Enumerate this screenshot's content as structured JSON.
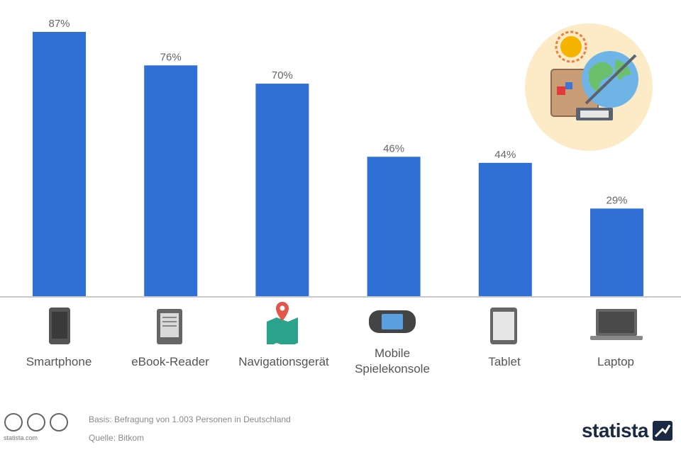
{
  "chart_data": {
    "type": "bar",
    "categories": [
      "Smartphone",
      "eBook-Reader",
      "Navigationsgerät",
      "Mobile\nSpielekonsole",
      "Tablet",
      "Laptop"
    ],
    "values": [
      87,
      76,
      70,
      46,
      44,
      29
    ],
    "value_labels": [
      "87%",
      "76%",
      "70%",
      "46%",
      "44%",
      "29%"
    ],
    "unit": "%",
    "ylim": [
      0,
      90
    ],
    "grid": false,
    "legend": "none",
    "bar_color": "#2f6fd6",
    "icons": [
      "smartphone-icon",
      "ebook-reader-icon",
      "navigation-pin-icon",
      "game-console-icon",
      "tablet-icon",
      "laptop-icon"
    ]
  },
  "footer": {
    "base": "Basis: Befragung von 1.003 Personen in Deutschland",
    "source": "Quelle: Bitkom",
    "license_url": "statista.com",
    "brand": "statista"
  },
  "colors": {
    "bar": "#2f6fd6",
    "baseline": "#c8c8c8",
    "brand": "#1b2a44",
    "illustration_bg": "#fcebc6"
  }
}
